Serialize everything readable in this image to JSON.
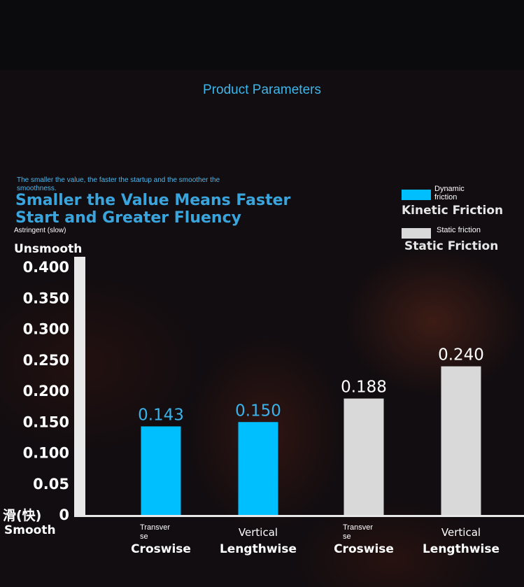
{
  "section_title": "Product Parameters",
  "note": "The smaller the value, the faster the startup and the smoother the smoothness.",
  "headline": [
    "Smaller the Value Means Faster",
    "Start and Greater Fluency"
  ],
  "axis_top_label_small": "Astringent (slow)",
  "axis_top_label": "Unsmooth",
  "axis_bottom_label_cn": "滑(快)",
  "axis_bottom_label": "Smooth",
  "legend": [
    {
      "small": "Dynamic friction",
      "big": "Kinetic Friction",
      "color": "#00bfff"
    },
    {
      "small": "Static friction",
      "big": "Static Friction",
      "color": "#d9d9d9"
    }
  ],
  "colors": {
    "kinetic": "#00bfff",
    "static": "#d9d9d9",
    "axis": "#e8e8e8",
    "kinetic_label": "#3ab2ea"
  },
  "chart_data": {
    "type": "bar",
    "categories": [
      {
        "small": "Transverse",
        "big": "Croswise"
      },
      {
        "small": "",
        "big": "Vertical Lengthwise"
      },
      {
        "small": "Transverse",
        "big": "Croswise"
      },
      {
        "small": "",
        "big": "Vertical Lengthwise"
      }
    ],
    "values": [
      0.143,
      0.15,
      0.188,
      0.24
    ],
    "value_labels": [
      "0.143",
      "0.150",
      "0.188",
      "0.240"
    ],
    "series_index": [
      0,
      0,
      1,
      1
    ],
    "yticks": [
      "0",
      "0.05",
      "0.100",
      "0.150",
      "0.200",
      "0.250",
      "0.300",
      "0.350",
      "0.400"
    ],
    "ylim": [
      0,
      0.42
    ],
    "grid": false
  }
}
